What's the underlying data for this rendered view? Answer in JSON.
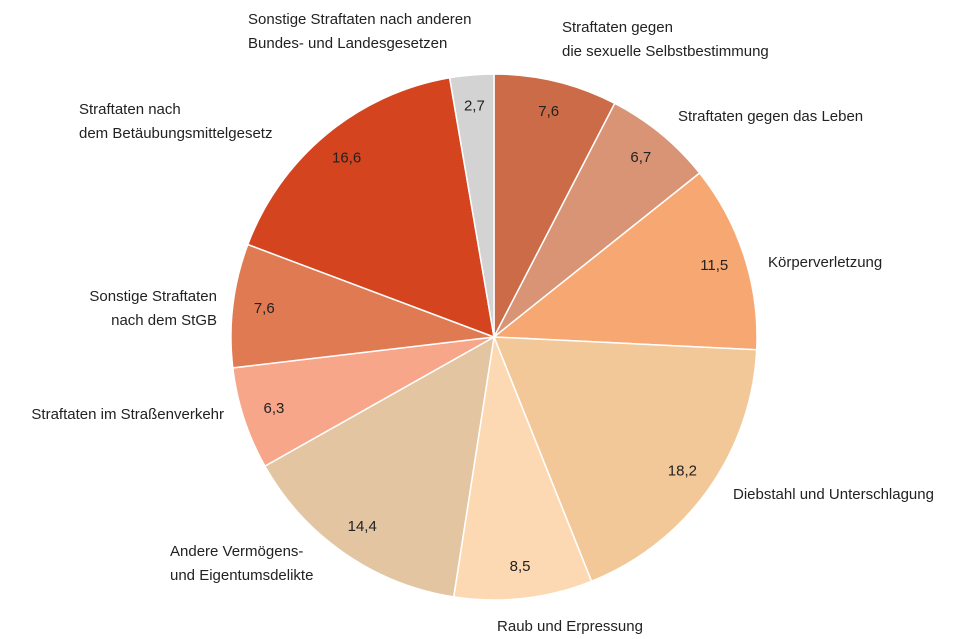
{
  "chart_data": {
    "type": "pie",
    "categories": [
      "Straftaten gegen\ndie sexuelle Selbstbestimmung",
      "Straftaten gegen das Leben",
      "Körperverletzung",
      "Diebstahl und Unterschlagung",
      "Raub und Erpressung",
      "Andere Vermögens-\nund Eigentumsdelikte",
      "Straftaten im Straßenverkehr",
      "Sonstige Straftaten\nnach dem StGB",
      "Straftaten nach\ndem Betäubungsmittelgesetz",
      "Sonstige Straftaten nach anderen\nBundes- und Landesgesetzen"
    ],
    "values": [
      7.6,
      6.7,
      11.5,
      18.2,
      8.5,
      14.4,
      6.3,
      7.6,
      16.6,
      2.7
    ],
    "value_labels": [
      "7,6",
      "6,7",
      "11,5",
      "18,2",
      "8,5",
      "14,4",
      "6,3",
      "7,6",
      "16,6",
      "2,7"
    ],
    "colors": [
      "#cc6b47",
      "#d99476",
      "#f7a872",
      "#f2c898",
      "#fcd9b2",
      "#e3c5a2",
      "#f7a68a",
      "#e07a52",
      "#d4441e",
      "#d3d3d3"
    ]
  }
}
